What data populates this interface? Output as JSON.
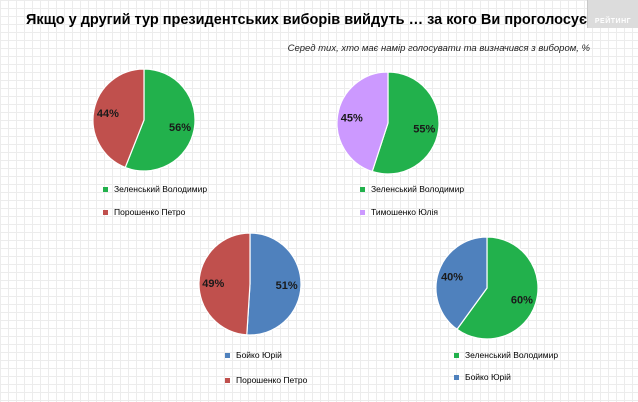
{
  "title": "Якщо у другий тур президентських виборів вийдуть … за кого Ви проголосуєте?",
  "subtitle": "Серед тих, хто має намір голосувати та визначився з вибором, %",
  "logo_text": "РЕЙТИНГ",
  "colors": {
    "zelensky": "#22b14c",
    "poroshenko": "#c0504d",
    "tymoshenko": "#cc99ff",
    "boyko": "#4f81bd"
  },
  "chart_data": [
    {
      "type": "pie",
      "slices": [
        {
          "name": "Зеленський Володимир",
          "value": 56,
          "label": "56%",
          "color": "#22b14c"
        },
        {
          "name": "Порошенко Петро",
          "value": 44,
          "label": "44%",
          "color": "#c0504d"
        }
      ]
    },
    {
      "type": "pie",
      "slices": [
        {
          "name": "Зеленський Володимир",
          "value": 55,
          "label": "55%",
          "color": "#22b14c"
        },
        {
          "name": "Тимошенко Юлія",
          "value": 45,
          "label": "45%",
          "color": "#cc99ff"
        }
      ]
    },
    {
      "type": "pie",
      "slices": [
        {
          "name": "Бойко Юрій",
          "value": 51,
          "label": "51%",
          "color": "#4f81bd"
        },
        {
          "name": "Порошенко Петро",
          "value": 49,
          "label": "49%",
          "color": "#c0504d"
        }
      ]
    },
    {
      "type": "pie",
      "slices": [
        {
          "name": "Зеленський Володимир",
          "value": 60,
          "label": "60%",
          "color": "#22b14c"
        },
        {
          "name": "Бойко Юрій",
          "value": 40,
          "label": "40%",
          "color": "#4f81bd"
        }
      ]
    }
  ]
}
